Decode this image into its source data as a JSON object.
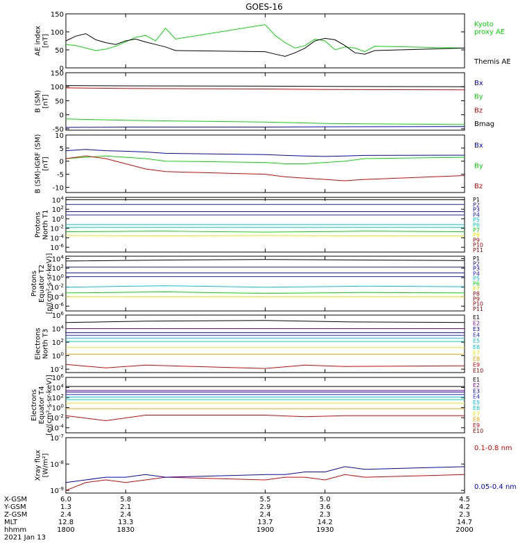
{
  "title": "GOES-16",
  "x_axis": {
    "range": [
      1800,
      2000
    ],
    "ticks": [
      1800,
      1830,
      1900,
      1930,
      2000
    ],
    "rows": [
      {
        "label": "X-GSM",
        "values": [
          "6.0",
          "5.8",
          "5.5",
          "5.0",
          "4.5"
        ]
      },
      {
        "label": "Y-GSM",
        "values": [
          "1.3",
          "2.1",
          "2.9",
          "3.6",
          "4.2"
        ]
      },
      {
        "label": "Z-GSM",
        "values": [
          "2.4",
          "2.4",
          "2.4",
          "2.3",
          "2.3"
        ]
      },
      {
        "label": "MLT",
        "values": [
          "12.8",
          "13.3",
          "13.7",
          "14.2",
          "14.7"
        ]
      },
      {
        "label": "hhmm",
        "values": [
          "1800",
          "1830",
          "1900",
          "1930",
          "2000"
        ]
      }
    ],
    "date": "2021 Jan 13"
  },
  "colors": {
    "black": "#000000",
    "blue": "#0000cc",
    "green": "#00dd00",
    "red": "#dd0000",
    "navy": "#1a1a8c",
    "deepblue": "#2222ff",
    "cyan": "#00c8e6",
    "teal": "#00d0b0",
    "yellow": "#e8e800",
    "orange": "#f0a000",
    "darkred": "#aa0000",
    "maroon": "#880000",
    "purple": "#880088"
  },
  "chart_data": [
    {
      "type": "line",
      "ylabel": "AE index\n[nT]",
      "ylim": [
        0,
        150
      ],
      "yticks": [
        "0",
        "50",
        "100",
        "150"
      ],
      "log": false,
      "x": [
        1800,
        1805,
        1810,
        1815,
        1820,
        1825,
        1830,
        1835,
        1840,
        1845,
        1850,
        1855,
        1900,
        1905,
        1910,
        1915,
        1920,
        1925,
        1930,
        1935,
        1940,
        1945,
        1950,
        1955,
        2000
      ],
      "series": [
        {
          "name": "Kyoto\nproxy AE",
          "color": "#00dd00",
          "values": [
            65,
            62,
            55,
            48,
            52,
            60,
            72,
            85,
            90,
            75,
            110,
            80,
            120,
            90,
            70,
            55,
            62,
            80,
            75,
            50,
            58,
            55,
            45,
            60,
            55
          ]
        },
        {
          "name": "Themis AE",
          "color": "#000000",
          "values": [
            75,
            88,
            95,
            78,
            70,
            65,
            75,
            80,
            72,
            65,
            58,
            48,
            45,
            38,
            32,
            42,
            55,
            75,
            82,
            78,
            62,
            42,
            38,
            48,
            55
          ]
        }
      ]
    },
    {
      "type": "line",
      "ylabel": "B (SM)\n[nT]",
      "ylim": [
        -55,
        150
      ],
      "yticks": [
        "-50",
        "0",
        "50",
        "100",
        "150"
      ],
      "log": false,
      "x": [
        1800,
        1830,
        1900,
        1930,
        2000
      ],
      "series": [
        {
          "name": "Bx",
          "color": "#0000cc",
          "values": [
            -45,
            -44,
            -44,
            -43,
            -42
          ]
        },
        {
          "name": "By",
          "color": "#00dd00",
          "values": [
            -15,
            -20,
            -26,
            -31,
            -35
          ]
        },
        {
          "name": "Bz",
          "color": "#dd0000",
          "values": [
            96,
            94,
            92,
            90,
            89
          ]
        },
        {
          "name": "Bmag",
          "color": "#000000",
          "values": [
            104,
            103,
            102,
            101,
            100
          ]
        }
      ]
    },
    {
      "type": "line",
      "ylabel": "B (SM)-IGRF (SM)\n[nT]",
      "ylim": [
        -12,
        10
      ],
      "yticks": [
        "-10",
        "-5",
        "0",
        "5",
        "10"
      ],
      "log": false,
      "x": [
        1800,
        1810,
        1820,
        1830,
        1840,
        1850,
        1900,
        1910,
        1920,
        1930,
        1940,
        1950,
        2000
      ],
      "series": [
        {
          "name": "Bx",
          "color": "#0000cc",
          "values": [
            4,
            4.5,
            4,
            3.8,
            3.5,
            3,
            2.5,
            2.2,
            2,
            1.8,
            2,
            2.2,
            2.3
          ]
        },
        {
          "name": "By",
          "color": "#00dd00",
          "values": [
            1,
            1.5,
            2,
            1.5,
            1,
            0,
            -0.5,
            -1,
            -1,
            -0.5,
            0,
            1,
            1.5
          ]
        },
        {
          "name": "Bz",
          "color": "#dd0000",
          "values": [
            1,
            2,
            1,
            -1,
            -3,
            -4,
            -5,
            -6,
            -6.5,
            -7,
            -7.5,
            -7,
            -5.5
          ]
        }
      ]
    },
    {
      "type": "line",
      "ylabel": "Protons\nNorth T1",
      "ylim": [
        -7,
        4.5
      ],
      "yticks": [
        "10^4",
        "10^2",
        "10^0",
        "10^-2",
        "10^-4",
        "10^-6"
      ],
      "log": true,
      "labels": [
        "P1",
        "P2",
        "P3",
        "P4",
        "P5",
        "P6",
        "P7",
        "P8",
        "P9",
        "P10",
        "P11"
      ],
      "x": [
        1800,
        1850,
        1900,
        1950,
        2000
      ],
      "series": [
        {
          "name": "P1",
          "color": "#000000",
          "values": [
            4,
            4,
            4,
            4,
            4
          ]
        },
        {
          "name": "P2",
          "color": "#1a1a8c",
          "values": [
            3,
            3,
            3,
            3,
            3
          ]
        },
        {
          "name": "P3",
          "color": "#0000cc",
          "values": [
            1.5,
            1.5,
            1.5,
            1.5,
            1.5
          ]
        },
        {
          "name": "P4",
          "color": "#2222ff",
          "values": [
            0.8,
            0.8,
            0.8,
            0.8,
            0.8
          ]
        },
        {
          "name": "P5",
          "color": "#00c8e6",
          "values": [
            -1.2,
            -1.2,
            -1.2,
            -1.2,
            -1.2
          ]
        },
        {
          "name": "P6",
          "color": "#00d0b0",
          "values": [
            -1.8,
            -1.8,
            -1.8,
            -1.8,
            -1.8
          ]
        },
        {
          "name": "P7",
          "color": "#00dd00",
          "values": [
            -2.7,
            -2.6,
            -2.8,
            -2.6,
            -2.7
          ]
        },
        {
          "name": "P8",
          "color": "#e8e800",
          "values": [
            -3.5,
            -3.6,
            -3.5,
            -3.6,
            -3.6
          ]
        }
      ]
    },
    {
      "type": "line",
      "ylabel": "Protons\nEquator T2\n[p/(cm²-s-sr-keV)]",
      "ylim": [
        -7,
        4.5
      ],
      "yticks": [
        "10^4",
        "10^2",
        "10^0",
        "10^-2",
        "10^-4",
        "10^-6"
      ],
      "log": true,
      "labels": [
        "P1",
        "P2",
        "P3",
        "P4",
        "P5",
        "P6",
        "P7",
        "P8",
        "P9",
        "P10",
        "P11"
      ],
      "x": [
        1800,
        1850,
        1900,
        1950,
        2000
      ],
      "series": [
        {
          "name": "P1",
          "color": "#000000",
          "values": [
            3.5,
            3.7,
            3.8,
            3.7,
            3.6
          ]
        },
        {
          "name": "P2",
          "color": "#1a1a8c",
          "values": [
            2.2,
            2.2,
            2.2,
            2.2,
            2.2
          ]
        },
        {
          "name": "P3",
          "color": "#0000cc",
          "values": [
            1,
            1,
            1,
            1,
            1
          ]
        },
        {
          "name": "P4",
          "color": "#2222ff",
          "values": [
            0.2,
            0.2,
            0.2,
            0.2,
            0.2
          ]
        },
        {
          "name": "P5",
          "color": "#00c8e6",
          "values": [
            -2,
            -1.7,
            -2,
            -1.8,
            -1.9
          ]
        },
        {
          "name": "P6",
          "color": "#00dd00",
          "values": [
            -3.2,
            -3,
            -3.3,
            -3.1,
            -3.2
          ]
        },
        {
          "name": "P7",
          "color": "#e8e800",
          "values": [
            -4,
            -4,
            -4,
            -4,
            -4
          ]
        }
      ]
    },
    {
      "type": "line",
      "ylabel": "Electrons\nNorth T3",
      "ylim": [
        -2.5,
        6
      ],
      "yticks": [
        "10^6",
        "10^4",
        "10^2",
        "10^0",
        "10^-2"
      ],
      "log": true,
      "labels": [
        "E1",
        "E2",
        "E3",
        "E4",
        "E5",
        "E6",
        "E7",
        "E8",
        "E9",
        "E10"
      ],
      "x": [
        1800,
        1820,
        1840,
        1900,
        1920,
        1940,
        2000
      ],
      "series": [
        {
          "name": "E1",
          "color": "#000000",
          "values": [
            4.9,
            5,
            5.1,
            5.2,
            5.1,
            5,
            4.9
          ]
        },
        {
          "name": "E2",
          "color": "#880088",
          "values": [
            4,
            4,
            4,
            4,
            4,
            4,
            4
          ]
        },
        {
          "name": "E3",
          "color": "#0000cc",
          "values": [
            3.4,
            3.4,
            3.4,
            3.4,
            3.4,
            3.4,
            3.4
          ]
        },
        {
          "name": "E4",
          "color": "#2222ff",
          "values": [
            3,
            3,
            3,
            3,
            3,
            3,
            3
          ]
        },
        {
          "name": "E5",
          "color": "#00c8e6",
          "values": [
            2.6,
            2.6,
            2.6,
            2.6,
            2.6,
            2.6,
            2.6
          ]
        },
        {
          "name": "E6",
          "color": "#00d0b0",
          "values": [
            2.1,
            2.1,
            2.1,
            2.1,
            2.1,
            2.1,
            2.1
          ]
        },
        {
          "name": "E7",
          "color": "#e8e800",
          "values": [
            1.2,
            1.2,
            1.2,
            1.2,
            1.2,
            1.2,
            1.2
          ]
        },
        {
          "name": "E8",
          "color": "#f0a000",
          "values": [
            0.2,
            0.2,
            0.2,
            0.2,
            0.2,
            0.2,
            0.2
          ]
        },
        {
          "name": "E9",
          "color": "#dd0000",
          "values": [
            -1.3,
            -1.8,
            -1.4,
            -1.9,
            -1.4,
            -1.6,
            -1.5
          ]
        }
      ]
    },
    {
      "type": "line",
      "ylabel": "Electrons\nEquator T4\n[e/(cm²-s-sr-keV)]",
      "ylim": [
        -5,
        6
      ],
      "yticks": [
        "10^6",
        "10^4",
        "10^2",
        "10^0",
        "10^-2",
        "10^-4"
      ],
      "log": true,
      "labels": [
        "E1",
        "E2",
        "E3",
        "E4",
        "E5",
        "E6",
        "E7",
        "E8",
        "E9",
        "E10"
      ],
      "x": [
        1800,
        1820,
        1840,
        1900,
        1920,
        1940,
        2000
      ],
      "series": [
        {
          "name": "E1",
          "color": "#000000",
          "values": [
            4.2,
            4.2,
            4.2,
            4.2,
            4.2,
            4.2,
            4.2
          ]
        },
        {
          "name": "E2",
          "color": "#880088",
          "values": [
            3.4,
            3.4,
            3.4,
            3.4,
            3.4,
            3.4,
            3.4
          ]
        },
        {
          "name": "E3",
          "color": "#0000cc",
          "values": [
            3.1,
            3.1,
            3.1,
            3.1,
            3.1,
            3.1,
            3.1
          ]
        },
        {
          "name": "E4",
          "color": "#2222ff",
          "values": [
            2.6,
            2.6,
            2.6,
            2.6,
            2.6,
            2.6,
            2.6
          ]
        },
        {
          "name": "E5",
          "color": "#00c8e6",
          "values": [
            2.1,
            2.1,
            2.1,
            2.1,
            2.1,
            2.1,
            2.1
          ]
        },
        {
          "name": "E6",
          "color": "#00d0b0",
          "values": [
            1.6,
            1.6,
            1.6,
            1.6,
            1.6,
            1.6,
            1.6
          ]
        },
        {
          "name": "E7",
          "color": "#e8e800",
          "values": [
            0.9,
            0.9,
            0.9,
            0.9,
            0.9,
            0.9,
            0.9
          ]
        },
        {
          "name": "E8",
          "color": "#f0a000",
          "values": [
            -0.2,
            -0.2,
            -0.2,
            -0.2,
            -0.2,
            -0.2,
            -0.2
          ]
        },
        {
          "name": "E9",
          "color": "#dd0000",
          "values": [
            -1.6,
            -2.6,
            -1.5,
            -1.5,
            -1.8,
            -1.6,
            -1.6
          ]
        }
      ]
    },
    {
      "type": "line",
      "ylabel": "Xray flux\n[W/m²]",
      "ylim": [
        -9.1,
        -7
      ],
      "yticks": [
        "10^-7",
        "10^-8",
        "10^-9"
      ],
      "log": true,
      "x": [
        1800,
        1810,
        1820,
        1830,
        1840,
        1850,
        1900,
        1910,
        1920,
        1930,
        1940,
        1950,
        2000
      ],
      "series": [
        {
          "name": "0.1-0.8 nm",
          "color": "#dd0000",
          "values": [
            -9,
            -8.7,
            -8.6,
            -8.7,
            -8.6,
            -8.5,
            -8.6,
            -8.5,
            -8.5,
            -8.6,
            -8.4,
            -8.5,
            -8.4
          ]
        },
        {
          "name": "0.05-0.4 nm",
          "color": "#0000cc",
          "values": [
            -8.7,
            -8.6,
            -8.5,
            -8.5,
            -8.4,
            -8.5,
            -8.4,
            -8.4,
            -8.3,
            -8.3,
            -8.1,
            -8.2,
            -8.1
          ]
        }
      ]
    }
  ]
}
